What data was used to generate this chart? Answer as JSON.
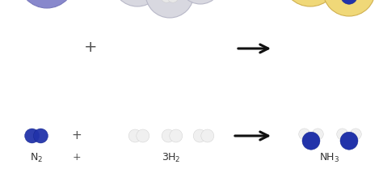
{
  "bg_color": "#ffffff",
  "blue_balloon_color": "#8888cc",
  "blue_balloon_edge": "#7777bb",
  "gray_balloon_color": "#d8d8e0",
  "gray_balloon_edge": "#b8b8c8",
  "yellow_balloon_color": "#f0d878",
  "yellow_balloon_edge": "#d0b050",
  "dark_blue": "#2233aa",
  "white_mol": "#f0f0f0",
  "string_color": "#99aa22",
  "arrow_color": "#111111",
  "text_color": "#333333",
  "plus_color": "#555555"
}
